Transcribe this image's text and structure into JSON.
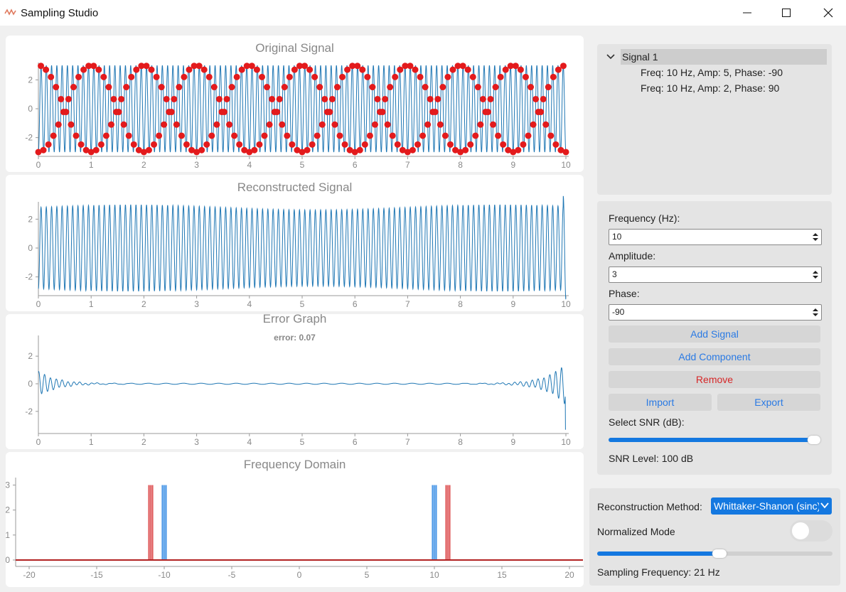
{
  "window": {
    "title": "Sampling Studio",
    "controls": [
      "minimize-icon",
      "maximize-icon",
      "close-icon"
    ]
  },
  "plots": {
    "original": {
      "title": "Original Signal"
    },
    "reconstructed": {
      "title": "Reconstructed Signal"
    },
    "error": {
      "title": "Error Graph",
      "error_text": "error: 0.07"
    },
    "frequency": {
      "title": "Frequency Domain"
    }
  },
  "chart_data": [
    {
      "type": "line",
      "title": "Original Signal",
      "xlim": [
        0,
        10
      ],
      "ylim": [
        -3.2,
        3.2
      ],
      "x_ticks": [
        "0",
        "1",
        "2",
        "3",
        "4",
        "5",
        "6",
        "7",
        "8",
        "9",
        "10"
      ],
      "y_ticks": [
        "2",
        "0",
        "-2"
      ],
      "series": [
        {
          "color": "#1f77b4",
          "frequency_hz": 10,
          "amplitude": 3
        },
        {
          "type": "scatter",
          "color": "#e31a1c",
          "sampling_frequency_hz": 21,
          "alias_frequency_hz": 1
        }
      ]
    },
    {
      "type": "line",
      "title": "Reconstructed Signal",
      "xlim": [
        0,
        10
      ],
      "ylim": [
        -3.2,
        3.2
      ],
      "x_ticks": [
        "0",
        "1",
        "2",
        "3",
        "4",
        "5",
        "6",
        "7",
        "8",
        "9",
        "10"
      ],
      "y_ticks": [
        "2",
        "0",
        "-2"
      ],
      "series": [
        {
          "color": "#1f77b4",
          "frequency_hz": 10,
          "amplitude": 3
        }
      ]
    },
    {
      "type": "line",
      "title": "Error Graph",
      "xlim": [
        0,
        10
      ],
      "ylim": [
        -3.5,
        3.5
      ],
      "x_ticks": [
        "0",
        "1",
        "2",
        "3",
        "4",
        "5",
        "6",
        "7",
        "8",
        "9",
        "10"
      ],
      "y_ticks": [
        "2",
        "0",
        "-2"
      ],
      "series": [
        {
          "color": "#1f77b4"
        }
      ]
    },
    {
      "type": "line",
      "title": "Frequency Domain",
      "xlim": [
        -21,
        21
      ],
      "ylim": [
        -0.2,
        3.3
      ],
      "x_ticks": [
        "-20",
        "-15",
        "-10",
        "-5",
        "0",
        "5",
        "10",
        "15",
        "20"
      ],
      "y_ticks": [
        "3",
        "2",
        "1",
        "0"
      ],
      "series": [
        {
          "color": "#1478e0",
          "peaks": [
            {
              "x": -10,
              "y": 3
            },
            {
              "x": 10,
              "y": 3
            }
          ]
        },
        {
          "color": "#d62728",
          "peaks": [
            {
              "x": -11,
              "y": 3
            },
            {
              "x": 11,
              "y": 3
            }
          ]
        }
      ]
    }
  ],
  "tree": {
    "signal": "Signal 1",
    "components": [
      "Freq: 10 Hz, Amp: 5, Phase: -90",
      "Freq: 10 Hz, Amp: 2, Phase: 90"
    ]
  },
  "form": {
    "frequency_label": "Frequency (Hz):",
    "frequency_value": "10",
    "amplitude_label": "Amplitude:",
    "amplitude_value": "3",
    "phase_label": "Phase:",
    "phase_value": "-90",
    "add_signal": "Add Signal",
    "add_component": "Add Component",
    "remove": "Remove",
    "import": "Import",
    "export": "Export",
    "snr_label": "Select SNR (dB):",
    "snr_level": "SNR Level: 100 dB",
    "snr_fraction": 0.97
  },
  "recon": {
    "method_label": "Reconstruction Method:",
    "method_value": "Whittaker-Shanon (sinc)",
    "normalized_label": "Normalized Mode",
    "normalized_on": false,
    "sampling_label": "Sampling Frequency: 21 Hz",
    "sampling_fraction": 0.52
  },
  "colors": {
    "accent": "#1478e0",
    "remove": "#d62728",
    "signal_line": "#1f77b4",
    "samples": "#e31a1c"
  }
}
